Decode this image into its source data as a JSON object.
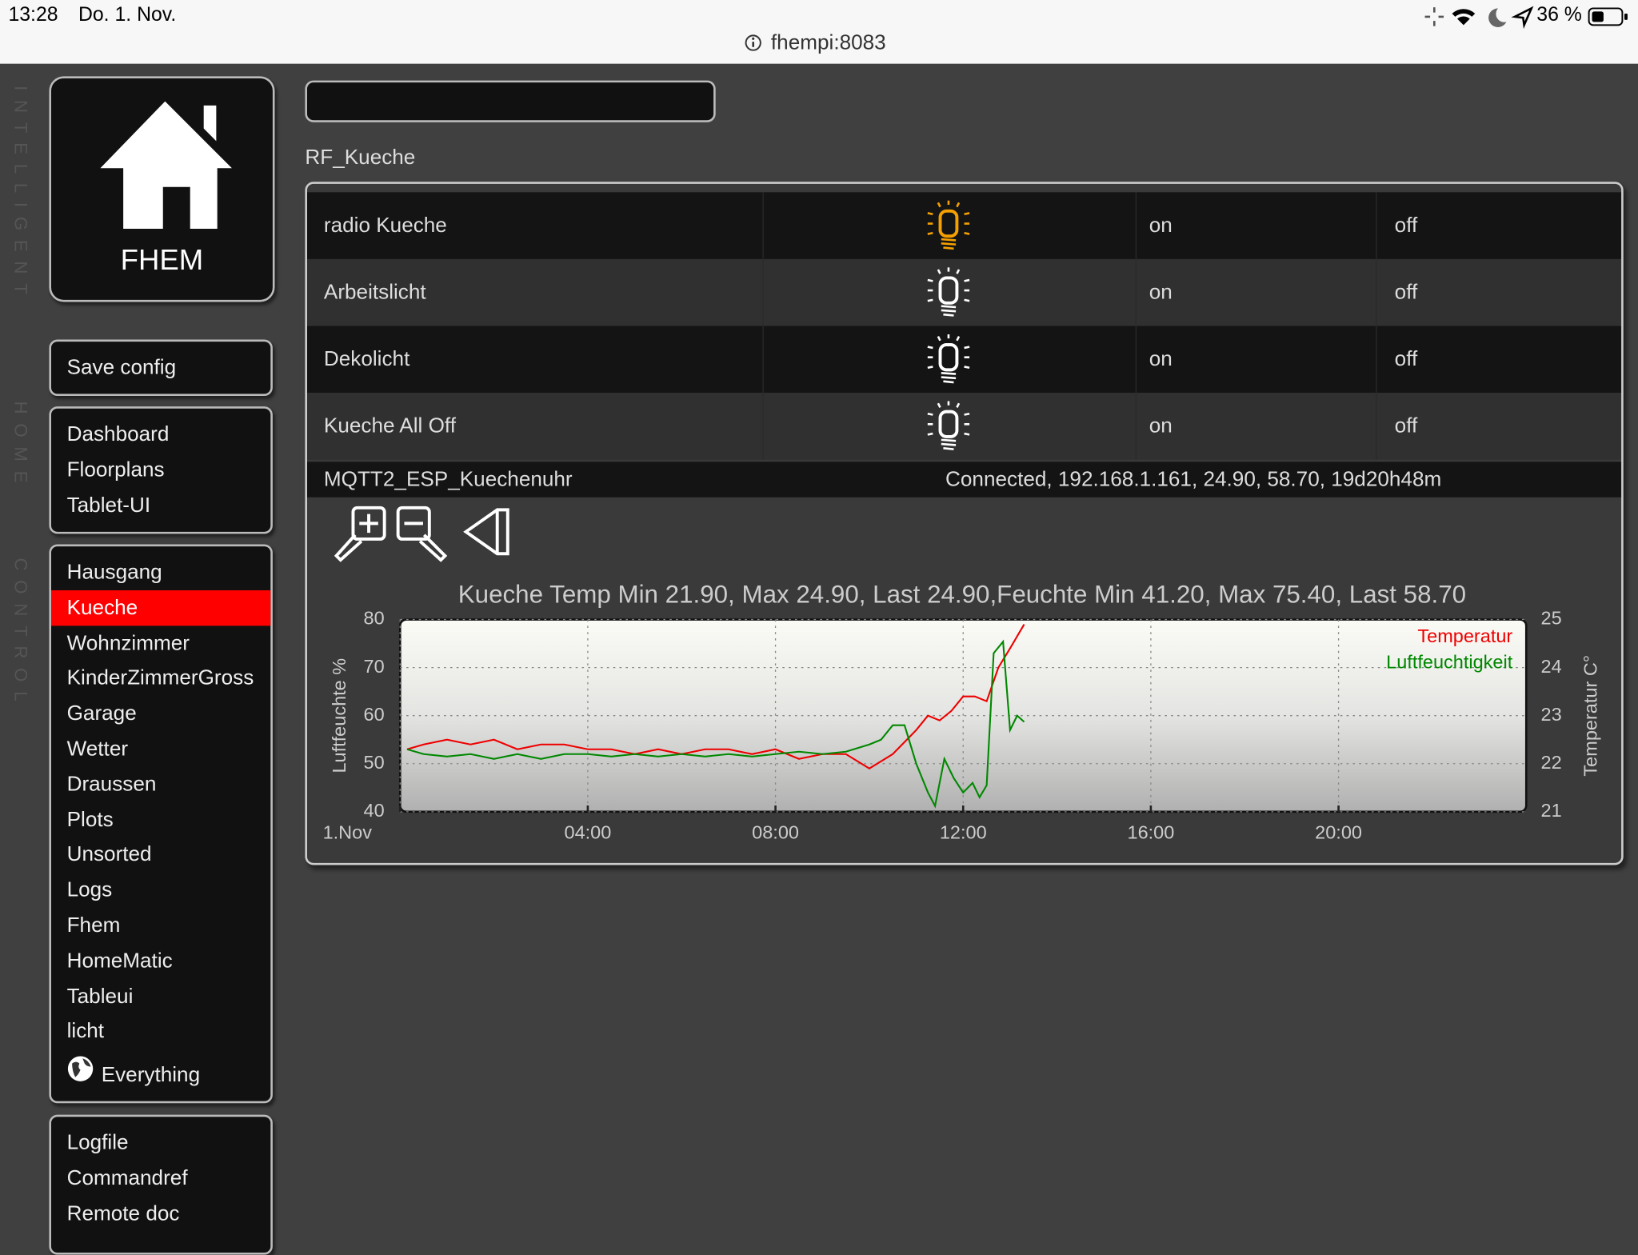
{
  "status_bar": {
    "time": "13:28",
    "date": "Do. 1. Nov.",
    "battery": "36 %"
  },
  "address_bar": {
    "url": "fhempi:8083"
  },
  "side_text": [
    "INTELLIGENT",
    "HOME",
    "CONTROL"
  ],
  "logo": {
    "label": "FHEM"
  },
  "menu": {
    "save": "Save config",
    "groups": [
      [
        "Dashboard",
        "Floorplans",
        "Tablet-UI"
      ],
      [
        "Hausgang",
        "Kueche",
        "Wohnzimmer",
        "KinderZimmerGross",
        "Garage",
        "Wetter",
        "Draussen",
        "Plots",
        "Unsorted",
        "Logs",
        "Fhem",
        "HomeMatic",
        "Tableui",
        "licht",
        "Everything"
      ],
      [
        "Logfile",
        "Commandref",
        "Remote doc"
      ]
    ]
  },
  "room": {
    "title": "RF_Kueche",
    "devices": [
      {
        "name": "radio Kueche",
        "on": "on",
        "off": "off"
      },
      {
        "name": "Arbeitslicht",
        "on": "on",
        "off": "off"
      },
      {
        "name": "Dekolicht",
        "on": "on",
        "off": "off"
      },
      {
        "name": "Kueche All Off",
        "on": "on",
        "off": "off"
      }
    ],
    "status_row": {
      "name": "MQTT2_ESP_Kuechenuhr",
      "state": "Connected, 192.168.1.161, 24.90, 58.70, 19d20h48m"
    }
  },
  "chart_data": {
    "type": "line",
    "title": "Kueche Temp  Min 21.90, Max 24.90, Last 24.90,Feuchte Min 41.20, Max 75.40, Last 58.70",
    "ylabel": "Luftfeuchte %",
    "y2label": "Temperatur C°",
    "xlim": [
      0,
      24
    ],
    "xticks": [
      {
        "value": 0,
        "label": "1.Nov"
      },
      {
        "value": 4,
        "label": "04:00"
      },
      {
        "value": 8,
        "label": "08:00"
      },
      {
        "value": 12,
        "label": "12:00"
      },
      {
        "value": 16,
        "label": "16:00"
      },
      {
        "value": 20,
        "label": "20:00"
      }
    ],
    "ylim": [
      40,
      80
    ],
    "yticks": [
      40,
      50,
      60,
      70,
      80
    ],
    "y2lim": [
      21,
      25
    ],
    "y2ticks": [
      21,
      22,
      23,
      24,
      25
    ],
    "grid": true,
    "legend": "top-right",
    "series": [
      {
        "name": "Temperatur",
        "color": "#ee0000",
        "axis": "y2",
        "x": [
          0.15,
          0.5,
          1,
          1.5,
          2,
          2.5,
          3,
          3.5,
          4,
          4.5,
          5,
          5.5,
          6,
          6.5,
          7,
          7.5,
          8,
          8.5,
          9,
          9.5,
          10,
          10.5,
          11,
          11.25,
          11.5,
          11.75,
          12,
          12.25,
          12.5,
          12.75,
          13,
          13.3
        ],
        "values": [
          22.3,
          22.4,
          22.5,
          22.4,
          22.5,
          22.3,
          22.4,
          22.4,
          22.3,
          22.3,
          22.2,
          22.3,
          22.2,
          22.3,
          22.3,
          22.2,
          22.3,
          22.1,
          22.2,
          22.2,
          21.9,
          22.2,
          22.7,
          23.0,
          22.9,
          23.1,
          23.4,
          23.4,
          23.3,
          24.0,
          24.4,
          24.9
        ]
      },
      {
        "name": "Luftfeuchtigkeit",
        "color": "#008800",
        "axis": "y",
        "x": [
          0.15,
          0.5,
          1,
          1.5,
          2,
          2.5,
          3,
          3.5,
          4,
          4.5,
          5,
          5.5,
          6,
          6.5,
          7,
          7.5,
          8,
          8.5,
          9,
          9.5,
          10,
          10.25,
          10.5,
          10.75,
          11,
          11.25,
          11.4,
          11.6,
          11.8,
          12,
          12.2,
          12.35,
          12.5,
          12.65,
          12.85,
          13,
          13.15,
          13.3
        ],
        "values": [
          53,
          52,
          51.5,
          52,
          51,
          52,
          51,
          52,
          52,
          51.5,
          52,
          51.5,
          52,
          51.5,
          52,
          51.5,
          52,
          52.5,
          52,
          52.5,
          54,
          55,
          58,
          58,
          50,
          44,
          41.2,
          51,
          47,
          44,
          46,
          43,
          45.5,
          73,
          75.4,
          57,
          60,
          58.7
        ]
      }
    ]
  }
}
